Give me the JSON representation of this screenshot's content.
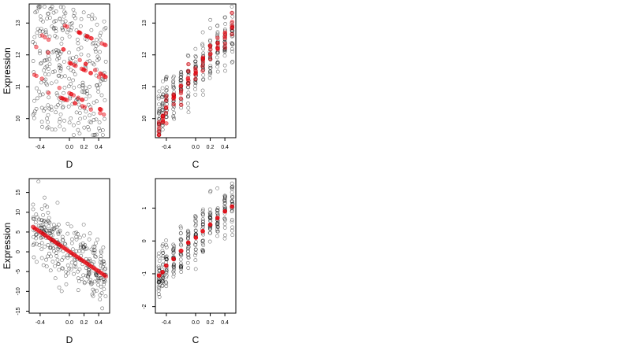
{
  "chart_data": [
    {
      "id": "top-left",
      "type": "scatter",
      "xlabel": "D",
      "ylabel": "Expression",
      "xlim": [
        -0.55,
        0.55
      ],
      "ylim": [
        9.4,
        13.6
      ],
      "x_ticks": [
        -0.4,
        0.0,
        0.2,
        0.4
      ],
      "x_tick_labels": [
        "-0.4",
        "0.0",
        "0.2",
        "0.4"
      ],
      "y_ticks": [
        10,
        11,
        12,
        13
      ],
      "y_tick_labels": [
        "10",
        "11",
        "12",
        "13"
      ],
      "grid": false,
      "colors": {
        "observed": "#000000",
        "fitted": "#e8000b"
      },
      "series": [
        {
          "role": "observed",
          "style": "open-circle",
          "n": 300,
          "x_range": [
            -0.5,
            0.5
          ],
          "y_range": [
            9.5,
            13.5
          ]
        },
        {
          "role": "fitted",
          "style": "filled-circle",
          "lines": [
            {
              "x": [
                -0.5,
                0.5
              ],
              "y": [
                13.4,
                12.3
              ]
            },
            {
              "x": [
                -0.5,
                0.5
              ],
              "y": [
                12.8,
                11.3
              ]
            },
            {
              "x": [
                -0.5,
                0.5
              ],
              "y": [
                12.3,
                11.2
              ]
            },
            {
              "x": [
                -0.5,
                0.5
              ],
              "y": [
                11.4,
                10.2
              ]
            },
            {
              "x": [
                -0.5,
                0.5
              ],
              "y": [
                11.0,
                10.1
              ]
            }
          ]
        }
      ]
    },
    {
      "id": "top-right",
      "type": "scatter",
      "xlabel": "C",
      "ylabel": "",
      "xlim": [
        -0.55,
        0.55
      ],
      "ylim": [
        9.4,
        13.6
      ],
      "x_ticks": [
        -0.4,
        0.0,
        0.2,
        0.4
      ],
      "x_tick_labels": [
        "-0.4",
        "0.0",
        "0.2",
        "0.4"
      ],
      "y_ticks": [
        10,
        11,
        12,
        13
      ],
      "y_tick_labels": [
        "10",
        "11",
        "12",
        "13"
      ],
      "grid": false,
      "colors": {
        "observed": "#000000",
        "fitted": "#e8000b"
      },
      "series": [
        {
          "role": "observed",
          "style": "open-circle",
          "n": 300,
          "x_levels": [
            -0.5,
            -0.45,
            -0.4,
            -0.3,
            -0.2,
            -0.1,
            0.0,
            0.1,
            0.2,
            0.3,
            0.4,
            0.5
          ],
          "y_trend": [
            10.0,
            10.3,
            10.5,
            10.7,
            11.0,
            11.3,
            11.5,
            11.8,
            12.0,
            12.2,
            12.5,
            12.8
          ],
          "spread": 0.9
        },
        {
          "role": "fitted",
          "style": "filled-circle",
          "x": [
            -0.5,
            -0.45,
            -0.4,
            -0.3,
            -0.2,
            -0.1,
            0.0,
            0.1,
            0.2,
            0.3,
            0.4,
            0.5
          ],
          "y": [
            9.6,
            10.0,
            10.3,
            10.6,
            10.9,
            11.2,
            11.5,
            11.8,
            12.0,
            12.3,
            12.6,
            12.8
          ],
          "spread": 0.5
        }
      ]
    },
    {
      "id": "bottom-left",
      "type": "scatter",
      "xlabel": "D",
      "ylabel": "Expression",
      "xlim": [
        -0.55,
        0.55
      ],
      "ylim": [
        -15.5,
        18.5
      ],
      "x_ticks": [
        -0.4,
        0.0,
        0.2,
        0.4
      ],
      "x_tick_labels": [
        "-0.4",
        "0.0",
        "0.2",
        "0.4"
      ],
      "y_ticks": [
        -15,
        -10,
        -5,
        0,
        5,
        10,
        15
      ],
      "y_tick_labels": [
        "-15",
        "-10",
        "-5",
        "0",
        "5",
        "10",
        "15"
      ],
      "grid": false,
      "colors": {
        "observed": "#000000",
        "fitted": "#e8000b"
      },
      "series": [
        {
          "role": "observed",
          "style": "open-circle",
          "n": 300,
          "trend": {
            "x": [
              -0.5,
              0.5
            ],
            "y": [
              6.5,
              -6.5
            ]
          },
          "spread": 6
        },
        {
          "role": "fitted",
          "style": "filled-circle",
          "n": 60,
          "trend": {
            "x": [
              -0.5,
              0.5
            ],
            "y": [
              6.3,
              -6.2
            ]
          }
        }
      ]
    },
    {
      "id": "bottom-right",
      "type": "scatter",
      "xlabel": "C",
      "ylabel": "",
      "xlim": [
        -0.55,
        0.55
      ],
      "ylim": [
        -2.2,
        1.9
      ],
      "x_ticks": [
        -0.4,
        0.0,
        0.2,
        0.4
      ],
      "x_tick_labels": [
        "-0.4",
        "0.0",
        "0.2",
        "0.4"
      ],
      "y_ticks": [
        -2,
        -1,
        0,
        1
      ],
      "y_tick_labels": [
        "-2",
        "-1",
        "0",
        "1"
      ],
      "grid": false,
      "colors": {
        "observed": "#000000",
        "fitted": "#e8000b"
      },
      "series": [
        {
          "role": "observed",
          "style": "open-circle",
          "n": 300,
          "x_levels": [
            -0.5,
            -0.45,
            -0.4,
            -0.3,
            -0.2,
            -0.1,
            0.0,
            0.1,
            0.2,
            0.3,
            0.4,
            0.5
          ],
          "y_trend": [
            -1.1,
            -0.9,
            -0.7,
            -0.5,
            -0.3,
            -0.1,
            0.1,
            0.3,
            0.5,
            0.7,
            0.9,
            1.1
          ],
          "spread": 0.8
        },
        {
          "role": "fitted",
          "style": "filled-circle",
          "x": [
            -0.5,
            -0.45,
            -0.4,
            -0.3,
            -0.2,
            -0.1,
            0.0,
            0.1,
            0.2,
            0.3,
            0.4,
            0.5
          ],
          "y": [
            -1.05,
            -0.95,
            -0.75,
            -0.55,
            -0.3,
            -0.05,
            0.1,
            0.3,
            0.5,
            0.7,
            0.9,
            1.05
          ]
        }
      ]
    }
  ]
}
